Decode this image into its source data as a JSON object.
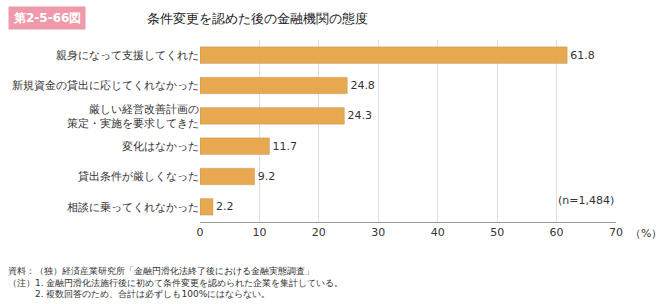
{
  "chart_data": {
    "type": "bar",
    "orientation": "horizontal",
    "title": "条件変更を認めた後の金融機関の態度",
    "annotations": [
      "第2-5-66図",
      "(n=1,484)",
      "資料：（独）経済産業研究所「金融円滑化法終了後における金融実態調査」",
      "（注）1. 金融円滑化法施行後に初めて条件変更を認められた企業を集計している。",
      "　　　2. 複数回答のため、合計は必ずしも100%にはならない。"
    ],
    "xlabel": "（%）",
    "categories": [
      "親身になって支援してくれた",
      "新規資金の貸出に応じてくれなかった",
      "厳しい経営改善計画の\n策定・実施を要求してきた",
      "変化はなかった",
      "貸出条件が厳しくなった",
      "相談に乗ってくれなかった"
    ],
    "values": [
      61.8,
      24.8,
      24.3,
      11.7,
      9.2,
      2.2
    ],
    "color": "#E8A850",
    "xlim": [
      0,
      70
    ],
    "xticks": [
      0,
      10,
      20,
      30,
      40,
      50,
      60,
      70
    ],
    "grid": true,
    "data_labels": true
  }
}
